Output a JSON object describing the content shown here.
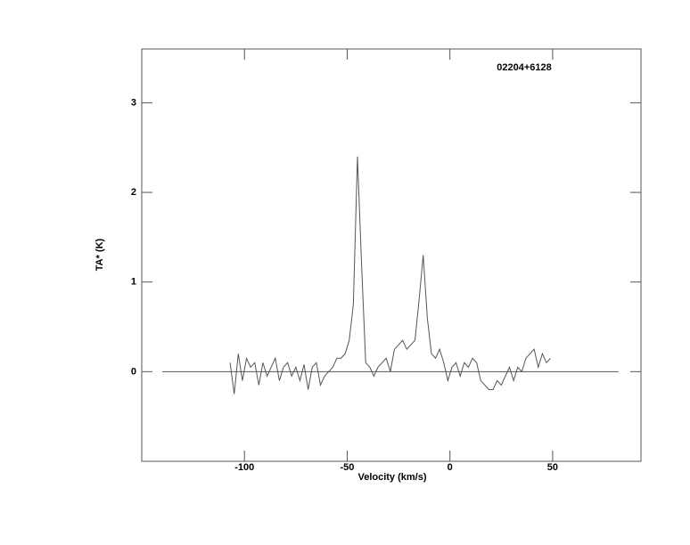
{
  "chart_data": {
    "type": "line",
    "title": "02204+6128",
    "x_label": "Velocity (km/s)",
    "y_label": "TA* (K)",
    "xlim": [
      -150,
      93
    ],
    "ylim": [
      -1,
      3.6
    ],
    "xticks": [
      -100,
      -50,
      0,
      50
    ],
    "yticks": [
      0,
      1,
      2,
      3
    ],
    "series": [
      {
        "color": "#555555",
        "x": [
          -107,
          -105,
          -103,
          -101,
          -99,
          -97,
          -95,
          -93,
          -91,
          -89,
          -87,
          -85,
          -83,
          -81,
          -79,
          -77,
          -75,
          -73,
          -71,
          -69,
          -67,
          -65,
          -63,
          -61,
          -59,
          -57,
          -55,
          -53,
          -51,
          -49,
          -47,
          -45,
          -43,
          -41,
          -39,
          -37,
          -35,
          -33,
          -31,
          -29,
          -27,
          -25,
          -23,
          -21,
          -19,
          -17,
          -15,
          -13,
          -11,
          -9,
          -7,
          -5,
          -3,
          -1,
          1,
          3,
          5,
          7,
          9,
          11,
          13,
          15,
          17,
          19,
          21,
          23,
          25,
          27,
          29,
          31,
          33,
          35,
          37,
          39,
          41,
          43,
          45,
          47,
          49
        ],
        "values": [
          0.1,
          -0.25,
          0.2,
          -0.1,
          0.15,
          0.05,
          0.1,
          -0.15,
          0.1,
          -0.05,
          0.05,
          0.15,
          -0.1,
          0.05,
          0.1,
          -0.05,
          0.05,
          -0.1,
          0.08,
          -0.2,
          0.05,
          0.1,
          -0.15,
          -0.05,
          0.0,
          0.05,
          0.15,
          0.15,
          0.2,
          0.35,
          0.75,
          2.4,
          1.2,
          0.1,
          0.05,
          -0.05,
          0.05,
          0.1,
          0.15,
          0.0,
          0.25,
          0.3,
          0.35,
          0.25,
          0.3,
          0.35,
          0.8,
          1.3,
          0.6,
          0.2,
          0.15,
          0.25,
          0.1,
          -0.1,
          0.05,
          0.1,
          -0.05,
          0.1,
          0.05,
          0.15,
          0.1,
          -0.1,
          -0.15,
          -0.2,
          -0.2,
          -0.1,
          -0.15,
          -0.05,
          0.05,
          -0.1,
          0.05,
          0.0,
          0.15,
          0.2,
          0.25,
          0.05,
          0.2,
          0.1,
          0.15
        ]
      },
      {
        "color": "#555555",
        "x": [
          -140,
          82
        ],
        "values": [
          0,
          0
        ]
      }
    ]
  }
}
